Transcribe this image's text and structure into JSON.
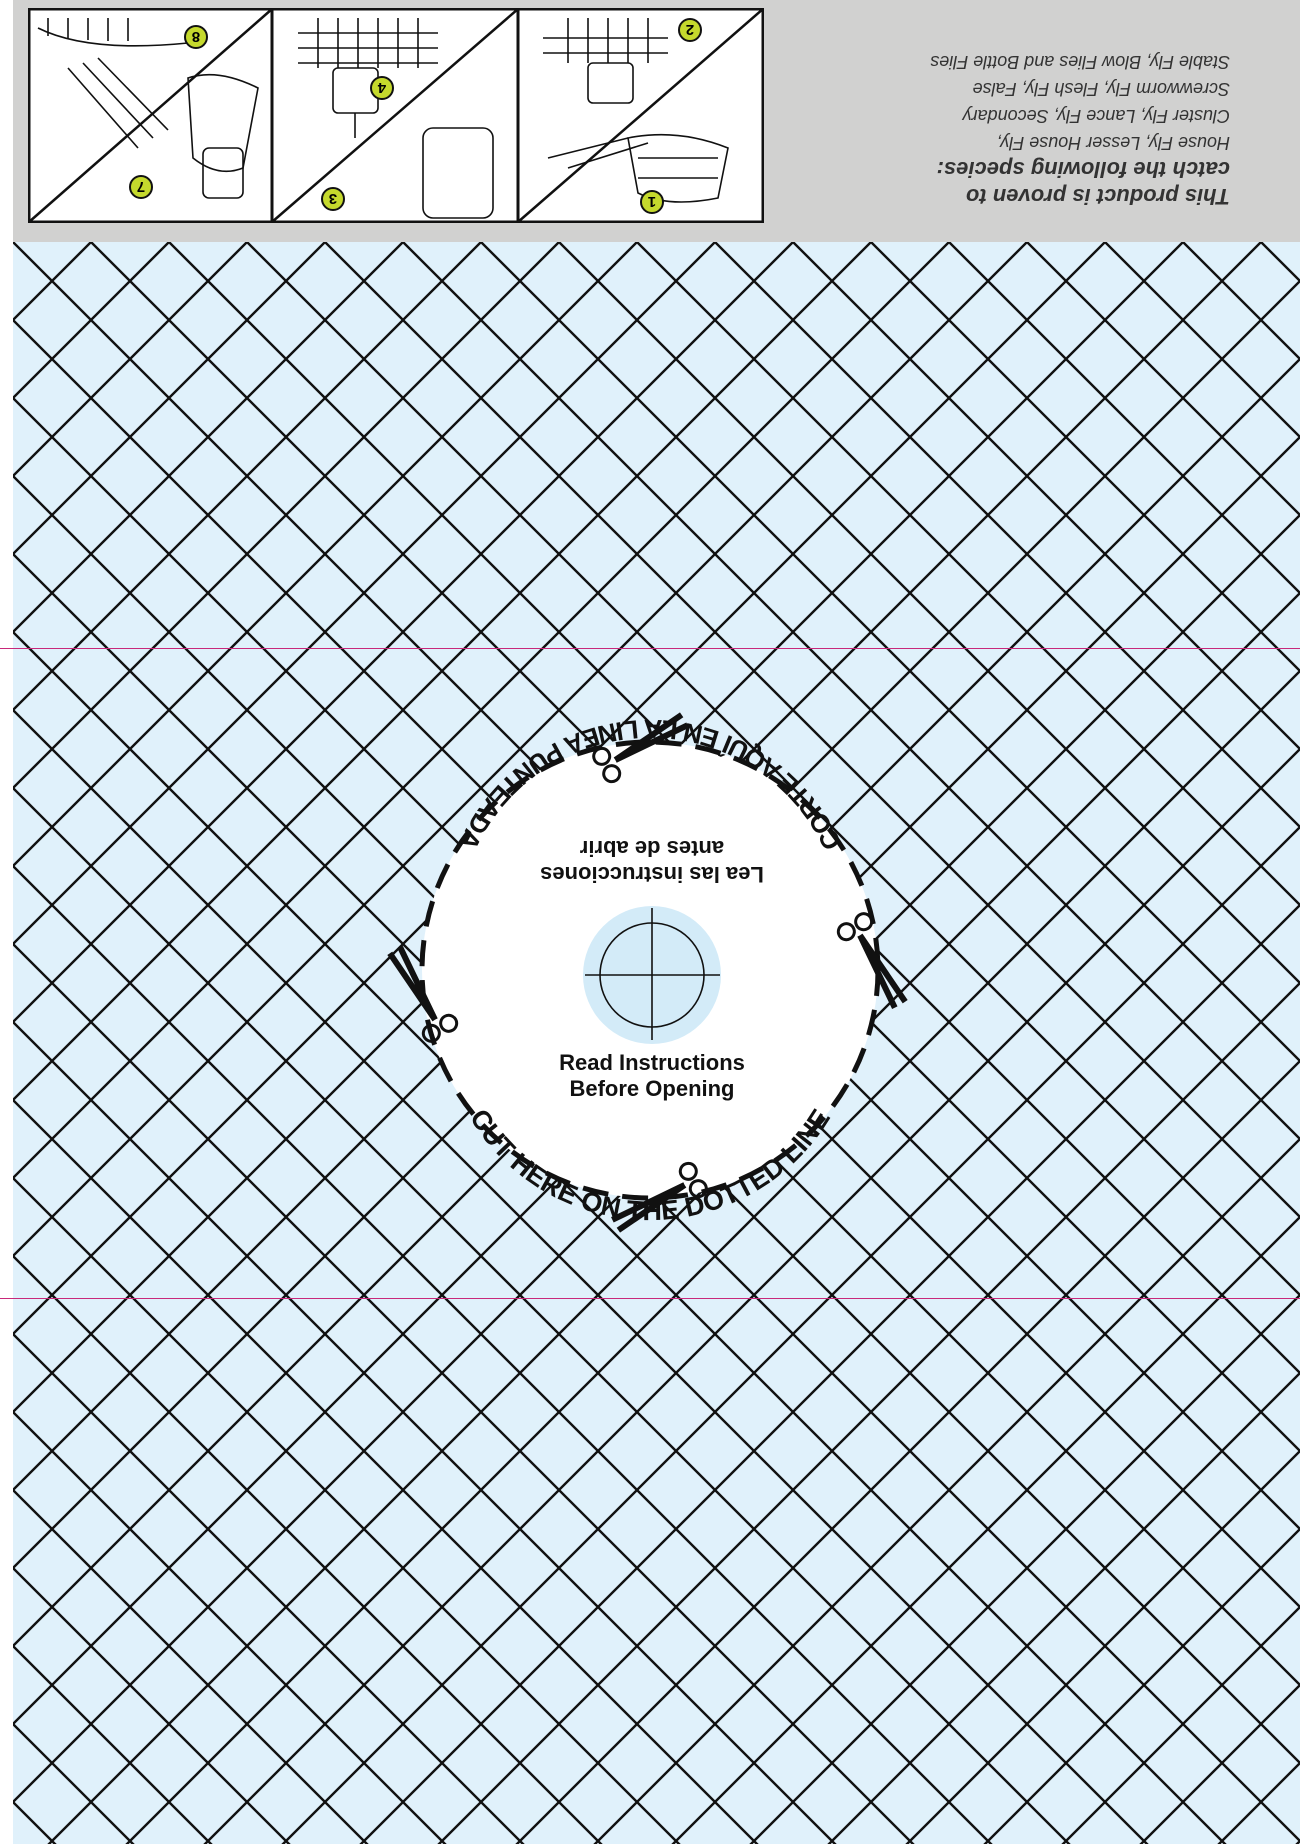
{
  "species_panel": {
    "heading_line1": "This product is proven to",
    "heading_line2": "catch the following species:",
    "list": [
      "House Fly, Lesser House Fly,",
      "Cluster Fly, Lance Fly, Secondary",
      "Screwworm Fly, Flesh Fly, False",
      "Stable Fly, Blow Flies and Bottle Flies"
    ]
  },
  "instruction_panels": [
    {
      "step": "1"
    },
    {
      "step": "2"
    },
    {
      "step": "3"
    },
    {
      "step": "4"
    },
    {
      "step": "7"
    },
    {
      "step": "8"
    }
  ],
  "cut_disc": {
    "english_label_line1": "Read Instructions",
    "english_label_line2": "Before Opening",
    "spanish_label_line1": "Lea las instrucciones",
    "spanish_label_line2": "antes de abrir",
    "english_cut_text": "CUT HERE ON THE DOTTED LINE",
    "spanish_cut_text": "CORTE AQUÍ EN LA LÍNEA PUNTEADA",
    "icons": [
      "scissors-icon",
      "crosshair-icon"
    ]
  },
  "colors": {
    "mesh_background": "#e0f1fb",
    "top_band": "#d1d1d0",
    "step_badge": "#c5d92d",
    "fold_line": "#c8287a",
    "ink": "#111111"
  }
}
